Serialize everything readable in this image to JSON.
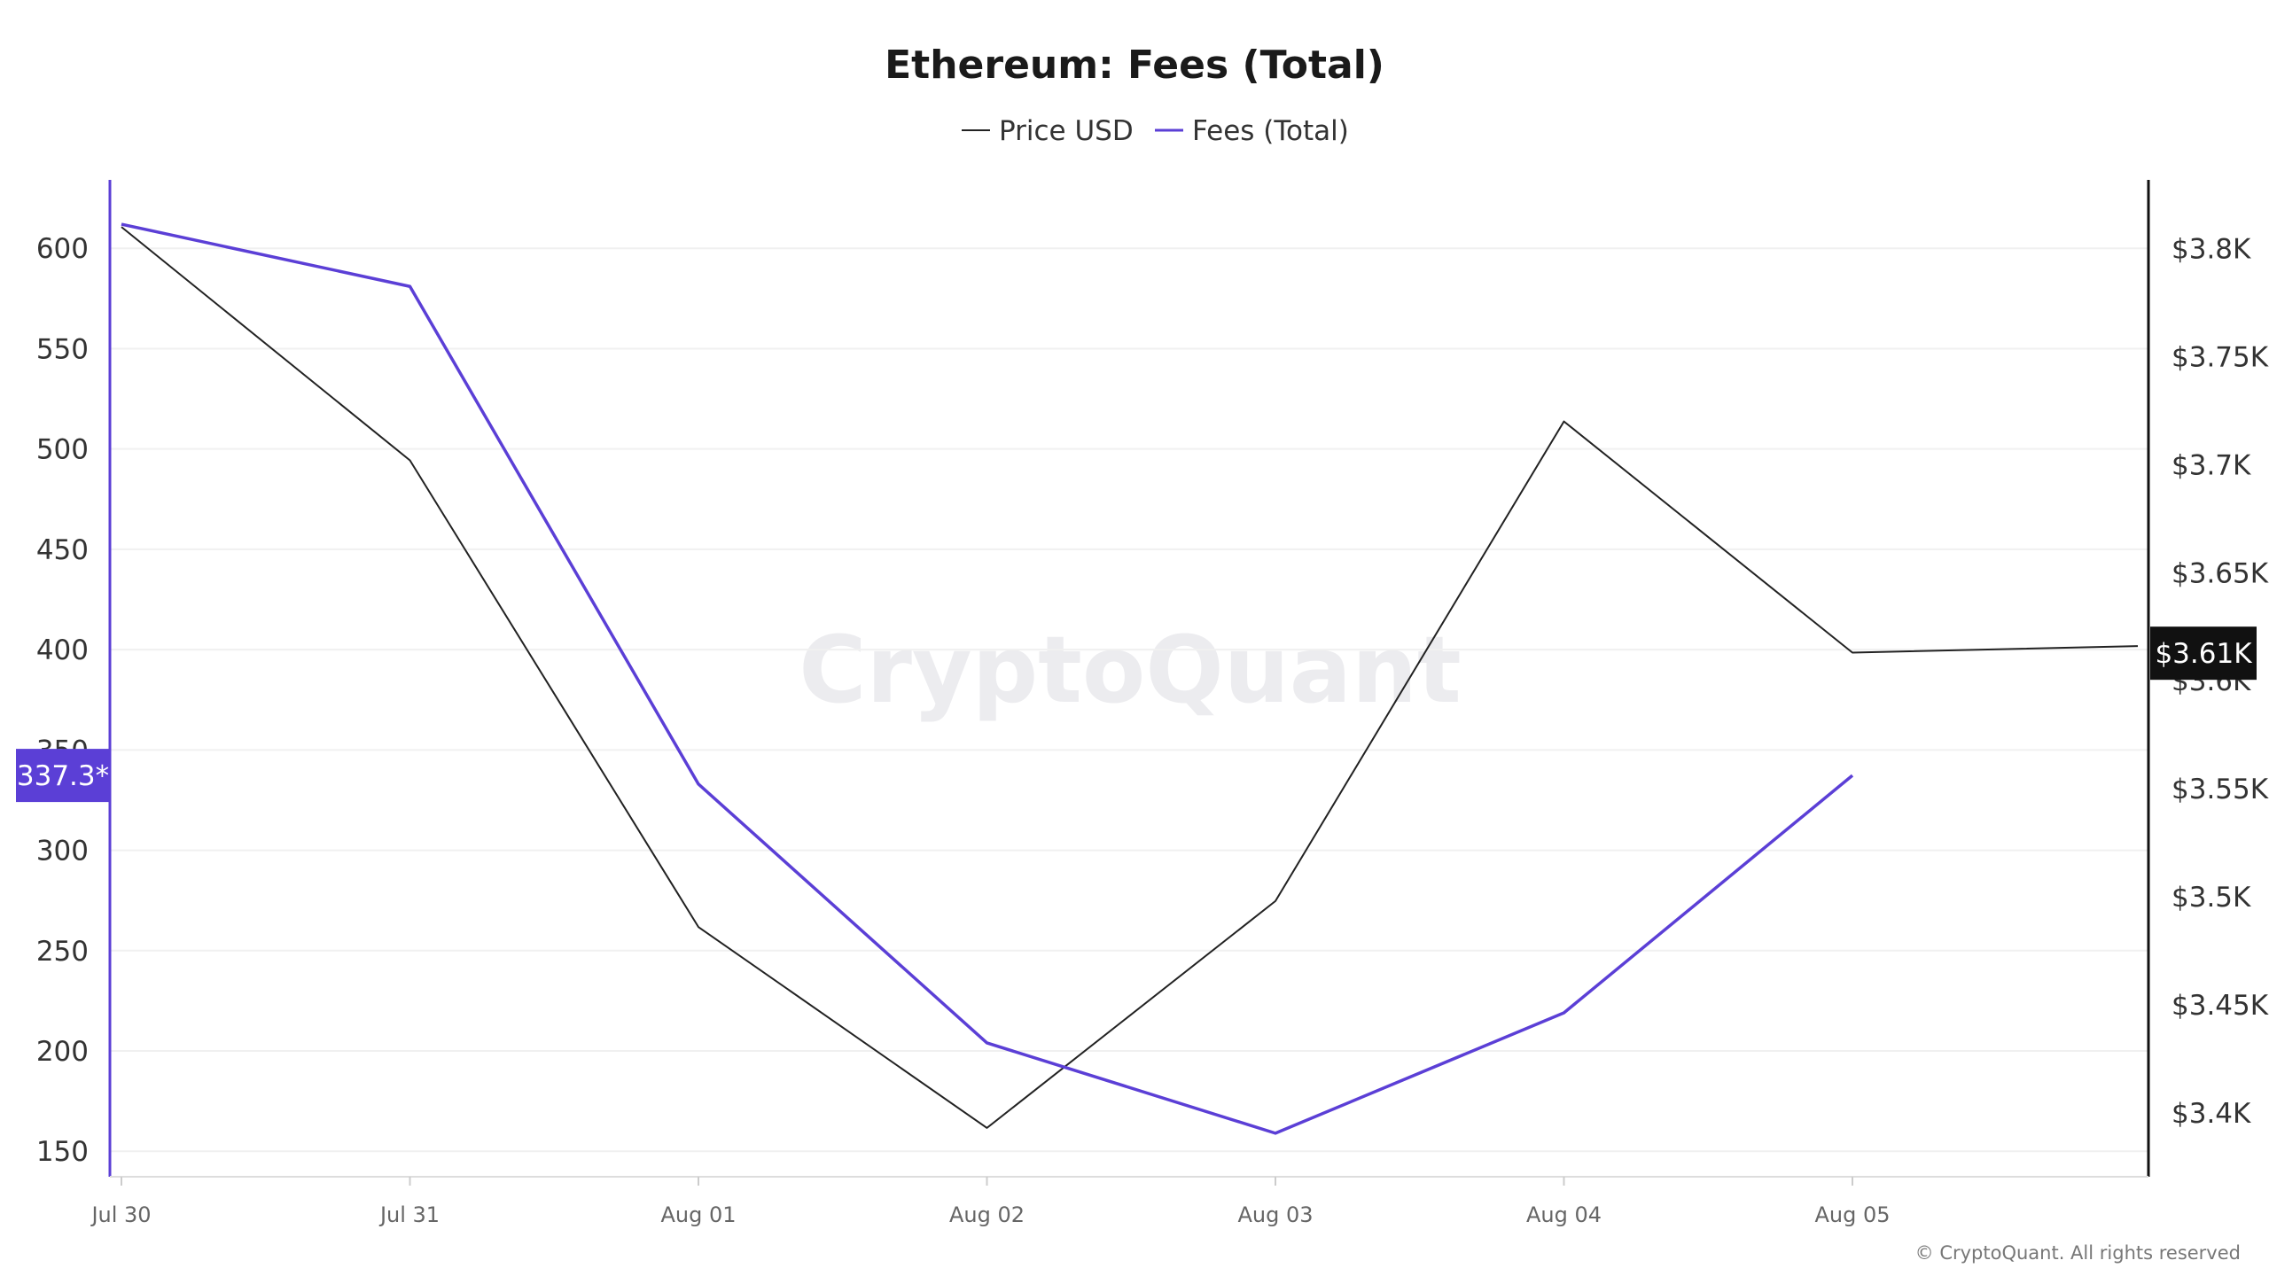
{
  "title": "Ethereum: Fees (Total)",
  "watermark": "CryptoQuant",
  "copyright": "© CryptoQuant. All rights reserved",
  "colors": {
    "price": "#222222",
    "fees": "#5b3fd6",
    "fees_badge": "#5b3fd6",
    "price_badge": "#111111",
    "grid": "#f0f0f0"
  },
  "legend_position": "top-center",
  "chart_data": {
    "type": "line",
    "title": "Ethereum: Fees (Total)",
    "x": [
      "Jul 30",
      "Jul 31",
      "Aug 01",
      "Aug 02",
      "Aug 03",
      "Aug 04",
      "Aug 05"
    ],
    "series": [
      {
        "name": "Price USD",
        "axis": "right",
        "values": [
          3810,
          3702,
          3486,
          3393,
          3498,
          3720,
          3613
        ],
        "extends_past_last_label": true,
        "last_value": 3616
      },
      {
        "name": "Fees (Total)",
        "axis": "left",
        "values": [
          612,
          581,
          333,
          204,
          159,
          219,
          337.3
        ]
      }
    ],
    "left_axis": {
      "ticks": [
        "600",
        "550",
        "500",
        "450",
        "400",
        "350",
        "300",
        "250",
        "200",
        "150"
      ],
      "tick_values": [
        600,
        550,
        500,
        450,
        400,
        350,
        300,
        250,
        200,
        150
      ],
      "range": [
        137.3,
        634.1
      ]
    },
    "right_axis": {
      "ticks": [
        "$3.8K",
        "$3.75K",
        "$3.7K",
        "$3.65K",
        "$3.6K",
        "$3.55K",
        "$3.5K",
        "$3.45K",
        "$3.4K"
      ],
      "tick_values": [
        3800,
        3750,
        3700,
        3650,
        3600,
        3550,
        3500,
        3450,
        3400
      ],
      "range": [
        3370.4,
        3831.8
      ]
    },
    "grid": true,
    "badges": {
      "fees": "337.3*",
      "price": "$3.61K"
    }
  }
}
